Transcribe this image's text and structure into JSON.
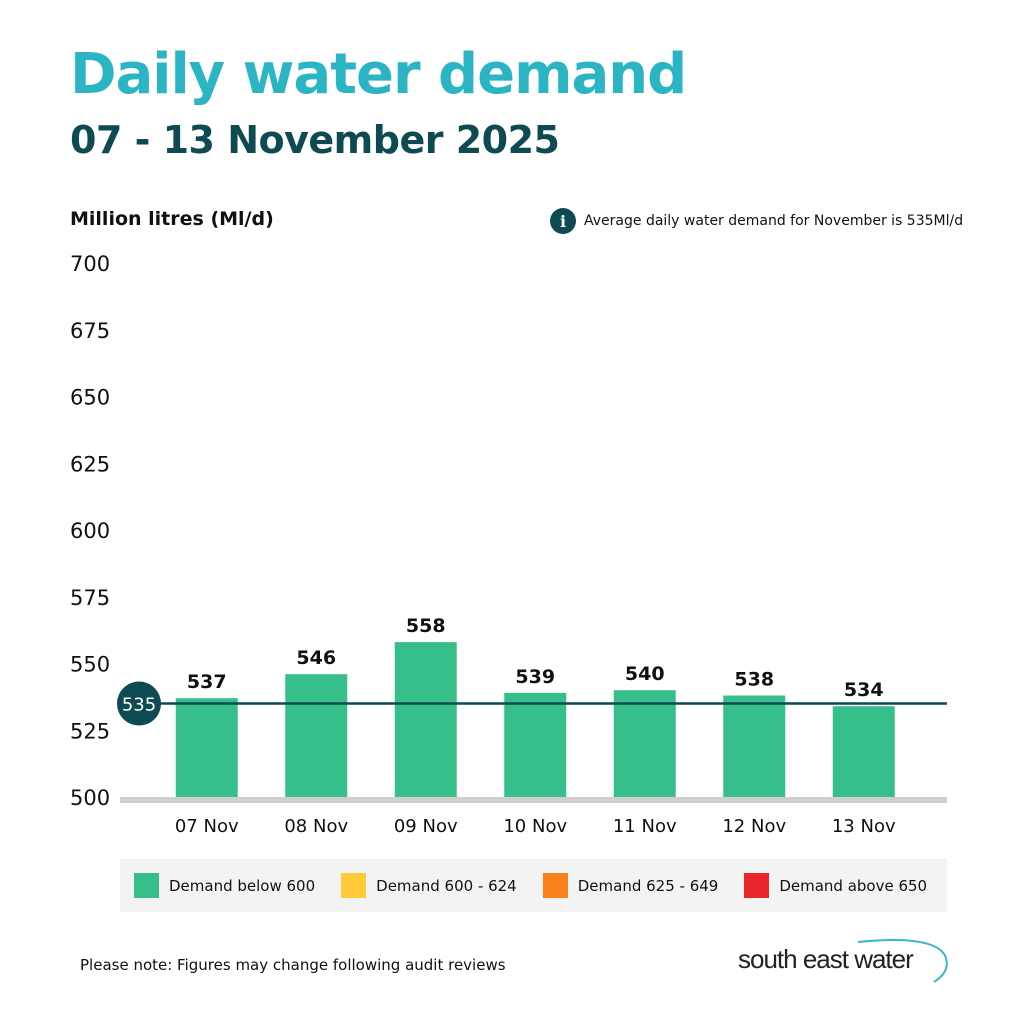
{
  "header": {
    "title": "Daily water demand",
    "subtitle": "07 - 13 November 2025"
  },
  "info_note": {
    "icon": "info-icon",
    "text": "Average daily water demand for November  is 535Ml/d"
  },
  "chart_data": {
    "type": "bar",
    "ylabel": "Million litres (Ml/d)",
    "ylim": [
      500,
      700
    ],
    "yticks": [
      700,
      675,
      650,
      625,
      600,
      575,
      550,
      525,
      500
    ],
    "categories": [
      "07 Nov",
      "08 Nov",
      "09 Nov",
      "10 Nov",
      "11 Nov",
      "12 Nov",
      "13 Nov"
    ],
    "values": [
      537,
      546,
      558,
      539,
      540,
      538,
      534
    ],
    "bar_color": "#36bf8a",
    "reference_line": {
      "value": 535,
      "label": "535",
      "color": "#0d4a52"
    },
    "grid": false
  },
  "legend": [
    {
      "label": "Demand below 600",
      "color": "#36bf8a"
    },
    {
      "label": "Demand 600 - 624",
      "color": "#ffcb3a"
    },
    {
      "label": "Demand 625 - 649",
      "color": "#f7821e"
    },
    {
      "label": "Demand above 650",
      "color": "#e8262b"
    }
  ],
  "footer": {
    "note": "Please note: Figures may change following audit reviews",
    "logo": "south east water"
  }
}
